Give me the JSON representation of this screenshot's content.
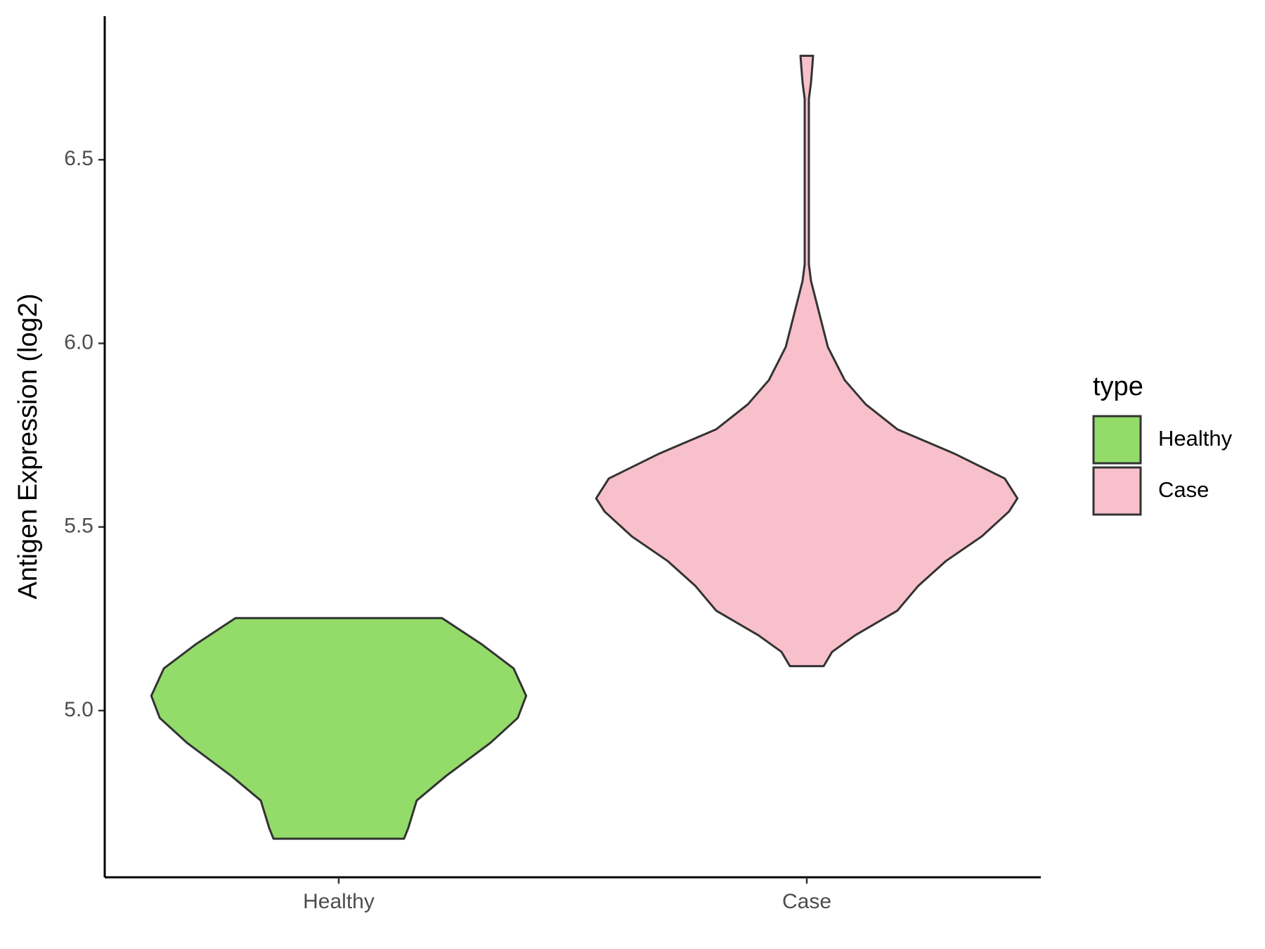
{
  "chart_data": {
    "type": "violin",
    "y_label": "Antigen Expression (log2)",
    "categories": [
      "Healthy",
      "Case"
    ],
    "ylim": [
      4.546,
      6.891
    ],
    "yticks": [
      {
        "value": 5,
        "label": "5.0"
      },
      5.5,
      {
        "value": 6,
        "label": "6.0"
      },
      6.5
    ],
    "legend_title": "type",
    "legend_position": "right",
    "series": [
      {
        "name": "Healthy",
        "color": "#93dc6a",
        "y": [
          4.651,
          4.68,
          4.755,
          4.822,
          4.912,
          4.98,
          5.04,
          5.115,
          5.18,
          5.252
        ],
        "density": [
          0.31,
          0.33,
          0.37,
          0.51,
          0.72,
          0.85,
          0.89,
          0.83,
          0.68,
          0.49
        ]
      },
      {
        "name": "Case",
        "color": "#f8c0cb",
        "y": [
          5.121,
          5.16,
          5.205,
          5.272,
          5.34,
          5.407,
          5.474,
          5.542,
          5.578,
          5.632,
          5.7,
          5.766,
          5.834,
          5.9,
          5.99,
          6.08,
          6.17,
          6.215,
          6.486,
          6.666,
          6.71,
          6.783
        ],
        "density": [
          0.08,
          0.12,
          0.23,
          0.43,
          0.53,
          0.66,
          0.83,
          0.96,
          1,
          0.94,
          0.7,
          0.43,
          0.28,
          0.18,
          0.1,
          0.06,
          0.02,
          0.01,
          0.01,
          0.01,
          0.02,
          0.03
        ]
      }
    ]
  }
}
